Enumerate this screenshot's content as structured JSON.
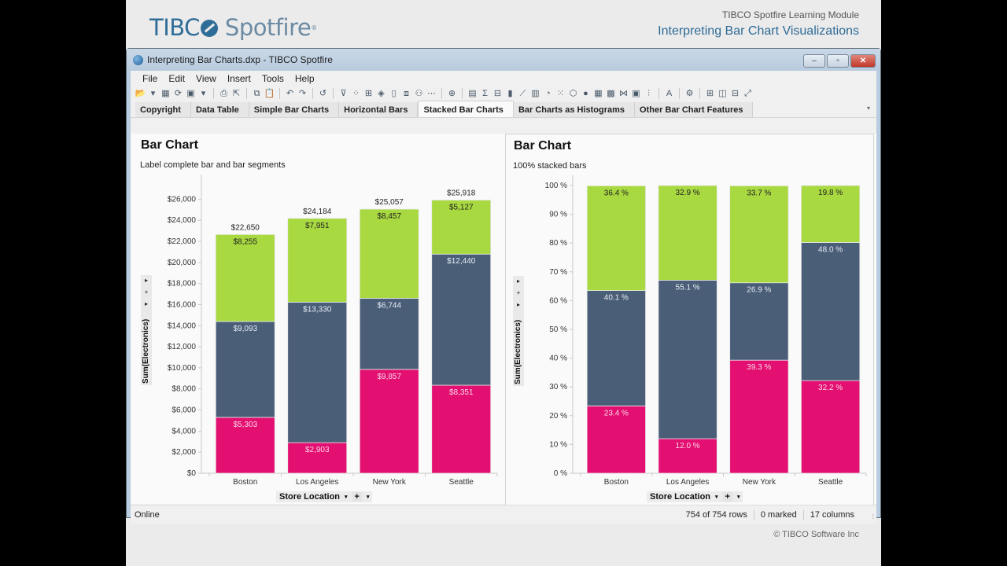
{
  "slide": {
    "brand_part1": "TIBC",
    "brand_part2": "Spotfire",
    "module_line1": "TIBCO Spotfire Learning Module",
    "module_line2": "Interpreting Bar Chart Visualizations",
    "copyright": "© TIBCO Software Inc"
  },
  "window": {
    "title": "Interpreting Bar Charts.dxp - TIBCO Spotfire",
    "minimize": "–",
    "restore": "▫",
    "close": "✕"
  },
  "menu": [
    "File",
    "Edit",
    "View",
    "Insert",
    "Tools",
    "Help"
  ],
  "toolbar": [
    {
      "name": "open-icon",
      "glyph": "📂"
    },
    {
      "name": "dropdown-icon",
      "glyph": "▾"
    },
    {
      "name": "add-data-table-icon",
      "glyph": "▦"
    },
    {
      "name": "reload-icon",
      "glyph": "⟳"
    },
    {
      "name": "save-icon",
      "glyph": "▣"
    },
    {
      "name": "dropdown-icon",
      "glyph": "▾"
    },
    {
      "sep": true
    },
    {
      "name": "print-icon",
      "glyph": "⎙"
    },
    {
      "name": "export-icon",
      "glyph": "⇱"
    },
    {
      "sep": true
    },
    {
      "name": "copy-icon",
      "glyph": "⧉"
    },
    {
      "name": "paste-icon",
      "glyph": "📋"
    },
    {
      "sep": true
    },
    {
      "name": "undo-icon",
      "glyph": "↶"
    },
    {
      "name": "redo-icon",
      "glyph": "↷"
    },
    {
      "sep": true
    },
    {
      "name": "reset-icon",
      "glyph": "↺"
    },
    {
      "sep": true
    },
    {
      "name": "filter-icon",
      "glyph": "⊽"
    },
    {
      "name": "details-icon",
      "glyph": "⁘"
    },
    {
      "name": "table-link-icon",
      "glyph": "⊞"
    },
    {
      "name": "tag-icon",
      "glyph": "◈"
    },
    {
      "name": "bookmark-icon",
      "glyph": "▯"
    },
    {
      "name": "lists-icon",
      "glyph": "⧈"
    },
    {
      "name": "collaboration-icon",
      "glyph": "⚇"
    },
    {
      "name": "info-links-icon",
      "glyph": "⋯"
    },
    {
      "sep": true
    },
    {
      "name": "new-page-icon",
      "glyph": "⊕"
    },
    {
      "sep": true
    },
    {
      "name": "table-icon",
      "glyph": "▤"
    },
    {
      "name": "cross-table-icon",
      "glyph": "Σ"
    },
    {
      "name": "graphical-table-icon",
      "glyph": "⊟"
    },
    {
      "name": "bar-chart-icon",
      "glyph": "▮"
    },
    {
      "name": "line-chart-icon",
      "glyph": "⟋"
    },
    {
      "name": "combination-chart-icon",
      "glyph": "▥"
    },
    {
      "name": "pie-chart-icon",
      "glyph": "◔"
    },
    {
      "name": "scatter-plot-icon",
      "glyph": "⁙"
    },
    {
      "name": "3d-scatter-icon",
      "glyph": "⬡"
    },
    {
      "name": "map-chart-icon",
      "glyph": "●"
    },
    {
      "name": "treemap-icon",
      "glyph": "▦"
    },
    {
      "name": "heat-map-icon",
      "glyph": "▩"
    },
    {
      "name": "parallel-coordinates-icon",
      "glyph": "⋈"
    },
    {
      "name": "summary-table-icon",
      "glyph": "▣"
    },
    {
      "name": "box-plot-icon",
      "glyph": "⫶"
    },
    {
      "sep": true
    },
    {
      "name": "text-area-icon",
      "glyph": "A"
    },
    {
      "sep": true
    },
    {
      "name": "tools-gear-icon",
      "glyph": "⚙"
    },
    {
      "sep": true
    },
    {
      "name": "layout-quad-icon",
      "glyph": "⊞"
    },
    {
      "name": "layout-side-by-side-icon",
      "glyph": "◫"
    },
    {
      "name": "layout-stacked-icon",
      "glyph": "⊟"
    },
    {
      "name": "maximize-visualization-icon",
      "glyph": "⤢"
    }
  ],
  "tabs": [
    {
      "label": "Copyright",
      "active": false
    },
    {
      "label": "Data Table",
      "active": false
    },
    {
      "label": "Simple Bar Charts",
      "active": false
    },
    {
      "label": "Horizontal Bars",
      "active": false
    },
    {
      "label": "Stacked Bar Charts",
      "active": true
    },
    {
      "label": "Bar Charts as Histograms",
      "active": false
    },
    {
      "label": "Other Bar Chart Features",
      "active": false
    }
  ],
  "tab_overflow": "▾",
  "axis_controls": {
    "arrow": "▸",
    "plus": "+",
    "dropdown": "▾"
  },
  "colors": {
    "green": "#a9d941",
    "slate": "#4a5e77",
    "magenta": "#e30f71",
    "axis": "#c8c8c8",
    "text": "#333333"
  },
  "status": {
    "left": "Online",
    "rows": "754 of 754 rows",
    "marked": "0 marked",
    "columns": "17 columns"
  },
  "chart_data": [
    {
      "type": "bar",
      "stacked": true,
      "title": "Bar Chart",
      "subtitle": "Label complete bar and bar segments",
      "xlabel": "Store Location",
      "ylabel": "Sum(Electronics)",
      "categories": [
        "Boston",
        "Los Angeles",
        "New York",
        "Seattle"
      ],
      "series": [
        {
          "name": "bottom",
          "color": "#e30f71",
          "values": [
            5303,
            2903,
            9857,
            8351
          ],
          "labels": [
            "$5,303",
            "$2,903",
            "$9,857",
            "$8,351"
          ]
        },
        {
          "name": "middle",
          "color": "#4a5e77",
          "values": [
            9093,
            13330,
            6744,
            12440
          ],
          "labels": [
            "$9,093",
            "$13,330",
            "$6,744",
            "$12,440"
          ]
        },
        {
          "name": "top",
          "color": "#a9d941",
          "values": [
            8255,
            7951,
            8457,
            5127
          ],
          "labels": [
            "$8,255",
            "$7,951",
            "$8,457",
            "$5,127"
          ]
        }
      ],
      "totals": [
        "$22,650",
        "$24,184",
        "$25,057",
        "$25,918"
      ],
      "ylim": [
        0,
        27000
      ],
      "yticks": [
        0,
        2000,
        4000,
        6000,
        8000,
        10000,
        12000,
        14000,
        16000,
        18000,
        20000,
        22000,
        24000,
        26000
      ],
      "ytick_labels": [
        "$0",
        "$2,000",
        "$4,000",
        "$6,000",
        "$8,000",
        "$10,000",
        "$12,000",
        "$14,000",
        "$16,000",
        "$18,000",
        "$20,000",
        "$22,000",
        "$24,000",
        "$26,000"
      ],
      "grid": false,
      "legend": "none"
    },
    {
      "type": "bar",
      "stacked": true,
      "percent": true,
      "title": "Bar Chart",
      "subtitle": "100% stacked bars",
      "xlabel": "Store Location",
      "ylabel": "Sum(Electronics)",
      "categories": [
        "Boston",
        "Los Angeles",
        "New York",
        "Seattle"
      ],
      "series": [
        {
          "name": "bottom",
          "color": "#e30f71",
          "values": [
            23.4,
            12.0,
            39.3,
            32.2
          ],
          "labels": [
            "23.4 %",
            "12.0 %",
            "39.3 %",
            "32.2 %"
          ]
        },
        {
          "name": "middle",
          "color": "#4a5e77",
          "values": [
            40.1,
            55.1,
            26.9,
            48.0
          ],
          "labels": [
            "40.1 %",
            "55.1 %",
            "26.9 %",
            "48.0 %"
          ]
        },
        {
          "name": "top",
          "color": "#a9d941",
          "values": [
            36.4,
            32.9,
            33.7,
            19.8
          ],
          "labels": [
            "36.4 %",
            "32.9 %",
            "33.7 %",
            "19.8 %"
          ]
        }
      ],
      "ylim": [
        0,
        100
      ],
      "yticks": [
        0,
        10,
        20,
        30,
        40,
        50,
        60,
        70,
        80,
        90,
        100
      ],
      "ytick_labels": [
        "0 %",
        "10 %",
        "20 %",
        "30 %",
        "40 %",
        "50 %",
        "60 %",
        "70 %",
        "80 %",
        "90 %",
        "100 %"
      ],
      "grid": false,
      "legend": "none"
    }
  ]
}
